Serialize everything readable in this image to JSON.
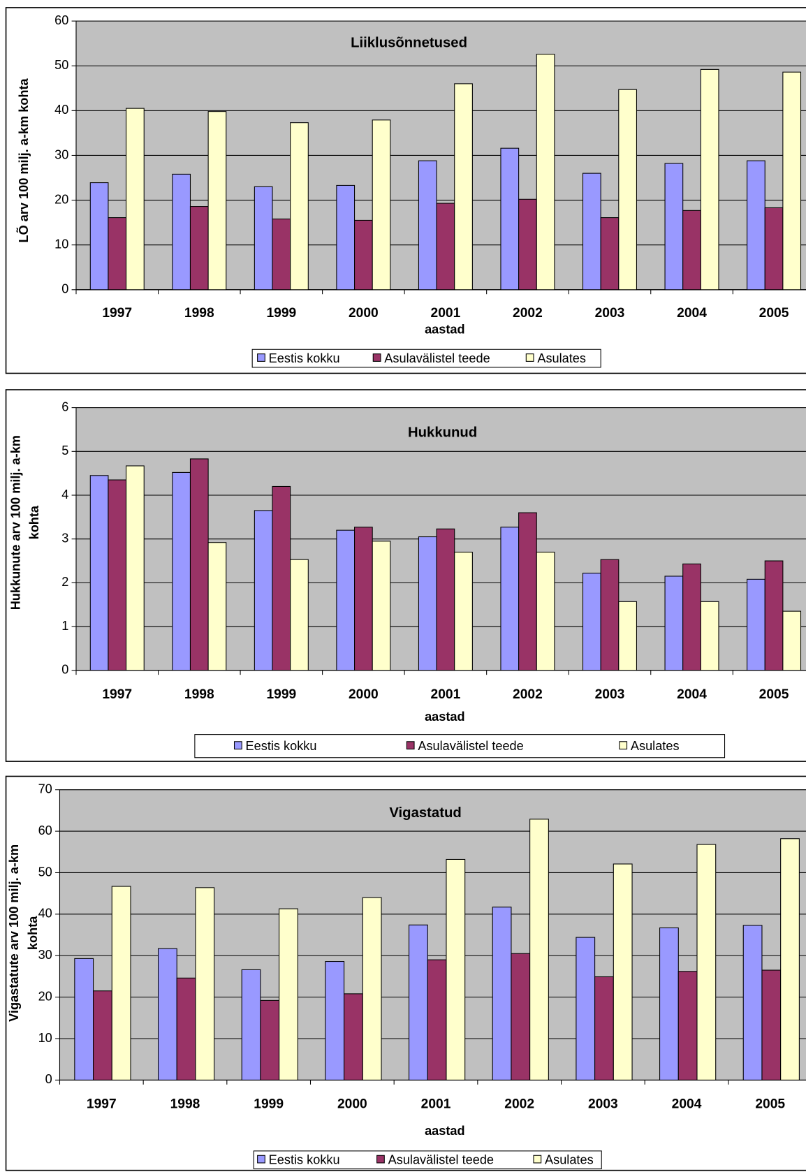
{
  "chart_data": [
    {
      "type": "bar",
      "title": "Liiklusõnnetused",
      "x_label": "aastad",
      "y_label": [
        "LÕ arv 100 milj. a-km kohta"
      ],
      "categories": [
        "1997",
        "1998",
        "1999",
        "2000",
        "2001",
        "2002",
        "2003",
        "2004",
        "2005"
      ],
      "series": [
        {
          "name": "Eestis kokku",
          "color": "#9999ff",
          "values": [
            23.9,
            25.8,
            23,
            23.3,
            28.8,
            31.6,
            26,
            28.2,
            28.8
          ]
        },
        {
          "name": "Asulavälistel teede",
          "color": "#993366",
          "values": [
            16.1,
            18.6,
            15.8,
            15.5,
            19.3,
            20.2,
            16.1,
            17.7,
            18.3
          ]
        },
        {
          "name": "Asulates",
          "color": "#ffffcc",
          "values": [
            40.5,
            39.8,
            37.3,
            37.9,
            46,
            52.6,
            44.7,
            49.2,
            48.6
          ]
        }
      ],
      "ylim": [
        0,
        60
      ],
      "yticks": [
        0,
        10,
        20,
        30,
        40,
        50,
        60
      ],
      "grid": true,
      "legend": "bottom"
    },
    {
      "type": "bar",
      "title": "Hukkunud",
      "x_label": "aastad",
      "y_label": [
        "Hukkunute arv 100 milj. a-km",
        "kohta"
      ],
      "categories": [
        "1997",
        "1998",
        "1999",
        "2000",
        "2001",
        "2002",
        "2003",
        "2004",
        "2005"
      ],
      "series": [
        {
          "name": "Eestis kokku",
          "color": "#9999ff",
          "values": [
            4.45,
            4.52,
            3.65,
            3.2,
            3.05,
            3.27,
            2.22,
            2.15,
            2.08
          ]
        },
        {
          "name": "Asulavälistel teede",
          "color": "#993366",
          "values": [
            4.35,
            4.83,
            4.2,
            3.27,
            3.23,
            3.6,
            2.53,
            2.43,
            2.5
          ]
        },
        {
          "name": "Asulates",
          "color": "#ffffcc",
          "values": [
            4.67,
            2.92,
            2.53,
            2.95,
            2.7,
            2.7,
            1.57,
            1.57,
            1.35
          ]
        }
      ],
      "ylim": [
        0,
        6
      ],
      "yticks": [
        0,
        1,
        2,
        3,
        4,
        5,
        6
      ],
      "grid": true,
      "legend": "bottom"
    },
    {
      "type": "bar",
      "title": "Vigastatud",
      "x_label": "aastad",
      "y_label": [
        "Vigastatute arv 100 milj. a-km",
        "kohta"
      ],
      "categories": [
        "1997",
        "1998",
        "1999",
        "2000",
        "2001",
        "2002",
        "2003",
        "2004",
        "2005"
      ],
      "series": [
        {
          "name": "Eestis kokku",
          "color": "#9999ff",
          "values": [
            29.3,
            31.7,
            26.6,
            28.6,
            37.4,
            41.7,
            34.4,
            36.7,
            37.3
          ]
        },
        {
          "name": "Asulavälistel teede",
          "color": "#993366",
          "values": [
            21.5,
            24.6,
            19.2,
            20.8,
            29,
            30.5,
            24.9,
            26.2,
            26.5
          ]
        },
        {
          "name": "Asulates",
          "color": "#ffffcc",
          "values": [
            46.7,
            46.4,
            41.3,
            44,
            53.2,
            62.9,
            52.1,
            56.8,
            58.2
          ]
        }
      ],
      "ylim": [
        0,
        70
      ],
      "yticks": [
        0,
        10,
        20,
        30,
        40,
        50,
        60,
        70
      ],
      "grid": true,
      "legend": "bottom"
    }
  ]
}
